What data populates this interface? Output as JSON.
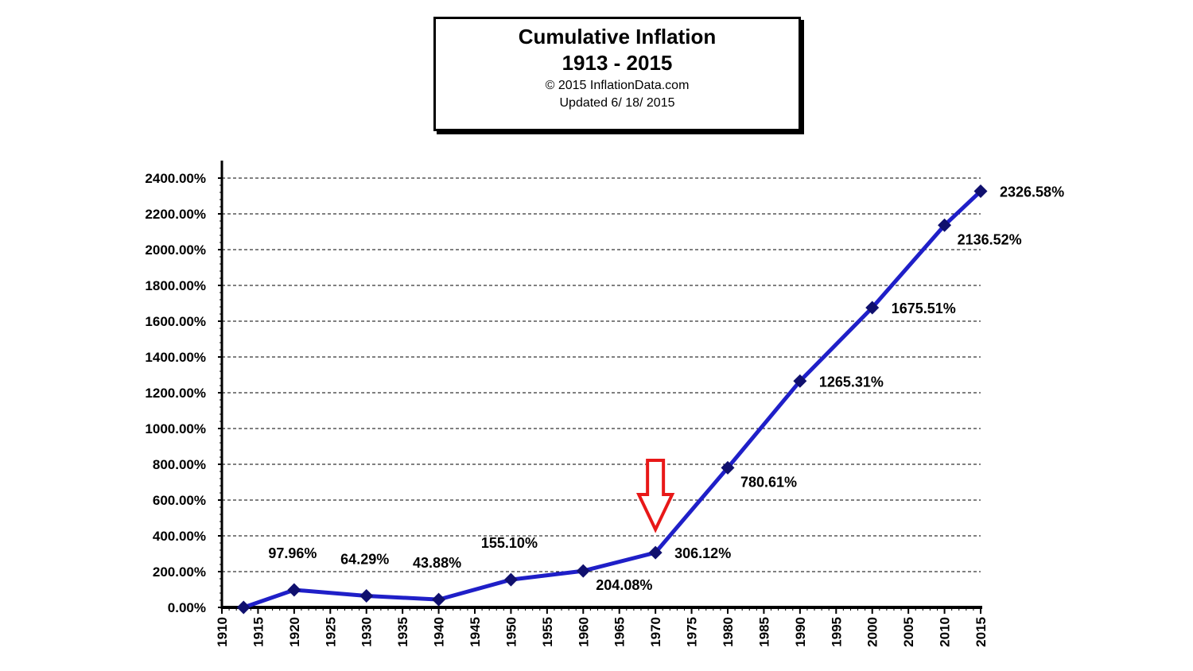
{
  "title_box": {
    "title_line1": "Cumulative Inflation",
    "title_line2": "1913 - 2015",
    "copyright": "© 2015 InflationData.com",
    "updated": "Updated   6/ 18/ 2015"
  },
  "colors": {
    "series": "#1f1fc8",
    "marker": "#10106e",
    "arrow": "#e81818",
    "grid": "#000000"
  },
  "chart_data": {
    "type": "line",
    "title": "Cumulative Inflation",
    "subtitle": "1913 - 2015",
    "xlabel": "",
    "ylabel": "",
    "xlim": [
      1910,
      2015
    ],
    "ylim": [
      0,
      2400
    ],
    "x_ticks": [
      1910,
      1915,
      1920,
      1925,
      1930,
      1935,
      1940,
      1945,
      1950,
      1955,
      1960,
      1965,
      1970,
      1975,
      1980,
      1985,
      1990,
      1995,
      2000,
      2005,
      2010,
      2015
    ],
    "y_ticks": [
      {
        "value": 0,
        "label": "0.00%"
      },
      {
        "value": 200,
        "label": "200.00%"
      },
      {
        "value": 400,
        "label": "400.00%"
      },
      {
        "value": 600,
        "label": "600.00%"
      },
      {
        "value": 800,
        "label": "800.00%"
      },
      {
        "value": 1000,
        "label": "1000.00%"
      },
      {
        "value": 1200,
        "label": "1200.00%"
      },
      {
        "value": 1400,
        "label": "1400.00%"
      },
      {
        "value": 1600,
        "label": "1600.00%"
      },
      {
        "value": 1800,
        "label": "1800.00%"
      },
      {
        "value": 2000,
        "label": "2000.00%"
      },
      {
        "value": 2200,
        "label": "2200.00%"
      },
      {
        "value": 2400,
        "label": "2400.00%"
      }
    ],
    "grid": "horizontal dashed",
    "legend": "none",
    "points": [
      {
        "x": 1913,
        "y": 0,
        "label": ""
      },
      {
        "x": 1920,
        "y": 97.96,
        "label": "97.96%",
        "label_pos": "above"
      },
      {
        "x": 1930,
        "y": 64.29,
        "label": "64.29%",
        "label_pos": "above"
      },
      {
        "x": 1940,
        "y": 43.88,
        "label": "43.88%",
        "label_pos": "above"
      },
      {
        "x": 1950,
        "y": 155.1,
        "label": "155.10%",
        "label_pos": "above"
      },
      {
        "x": 1960,
        "y": 204.08,
        "label": "204.08%",
        "label_pos": "below-right"
      },
      {
        "x": 1970,
        "y": 306.12,
        "label": "306.12%",
        "label_pos": "right"
      },
      {
        "x": 1980,
        "y": 780.61,
        "label": "780.61%",
        "label_pos": "below-right"
      },
      {
        "x": 1990,
        "y": 1265.31,
        "label": "1265.31%",
        "label_pos": "right"
      },
      {
        "x": 2000,
        "y": 1675.51,
        "label": "1675.51%",
        "label_pos": "right"
      },
      {
        "x": 2010,
        "y": 2136.52,
        "label": "2136.52%",
        "label_pos": "below-right"
      },
      {
        "x": 2015,
        "y": 2326.58,
        "label": "2326.58%",
        "label_pos": "right"
      }
    ],
    "annotations": [
      {
        "type": "arrow-down",
        "x": 1970,
        "color": "red"
      }
    ]
  }
}
